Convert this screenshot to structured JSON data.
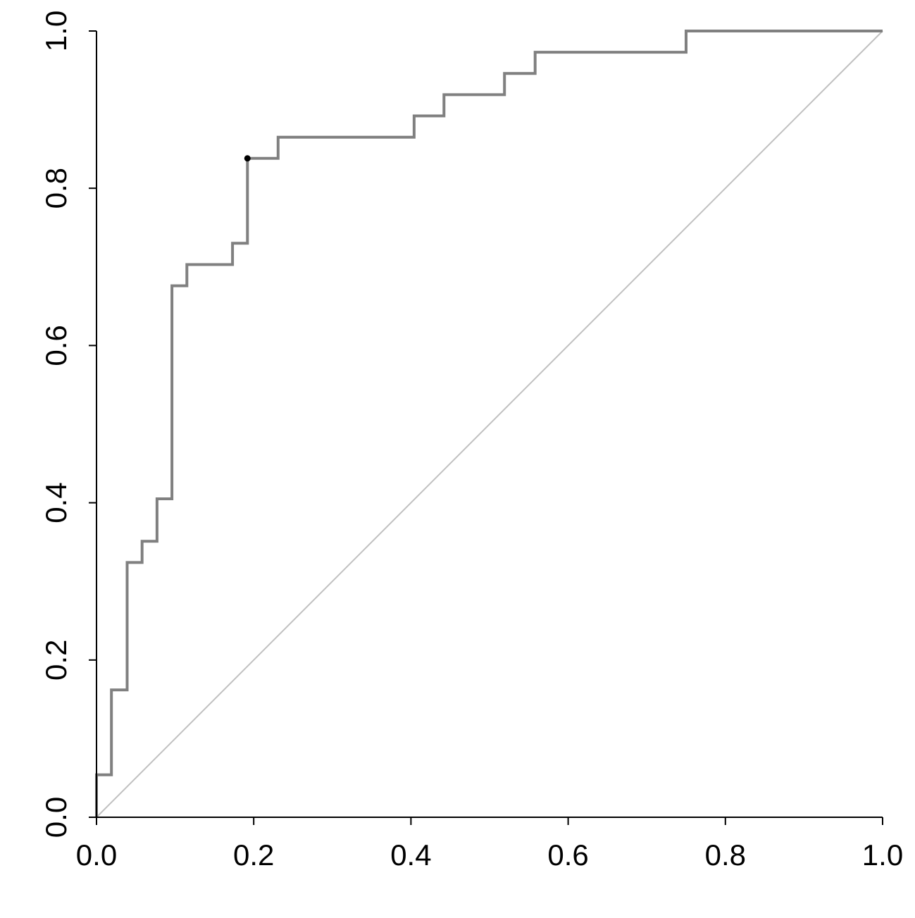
{
  "chart_data": {
    "type": "line",
    "title": "",
    "xlabel": "",
    "ylabel": "",
    "xlim": [
      0,
      1
    ],
    "ylim": [
      0,
      1
    ],
    "grid": false,
    "x_ticks": [
      "0.0",
      "0.2",
      "0.4",
      "0.6",
      "0.8",
      "1.0"
    ],
    "y_ticks": [
      "0.0",
      "0.2",
      "0.4",
      "0.6",
      "0.8",
      "1.0"
    ],
    "series": [
      {
        "style": "step",
        "color": "#808080",
        "points": [
          [
            0.0,
            0.0
          ],
          [
            0.0,
            0.054
          ],
          [
            0.019,
            0.054
          ],
          [
            0.019,
            0.162
          ],
          [
            0.039,
            0.162
          ],
          [
            0.039,
            0.324
          ],
          [
            0.058,
            0.324
          ],
          [
            0.058,
            0.351
          ],
          [
            0.077,
            0.351
          ],
          [
            0.077,
            0.405
          ],
          [
            0.096,
            0.405
          ],
          [
            0.096,
            0.676
          ],
          [
            0.115,
            0.676
          ],
          [
            0.115,
            0.703
          ],
          [
            0.173,
            0.703
          ],
          [
            0.173,
            0.73
          ],
          [
            0.192,
            0.73
          ],
          [
            0.192,
            0.838
          ],
          [
            0.231,
            0.838
          ],
          [
            0.231,
            0.865
          ],
          [
            0.404,
            0.865
          ],
          [
            0.404,
            0.892
          ],
          [
            0.442,
            0.892
          ],
          [
            0.442,
            0.919
          ],
          [
            0.519,
            0.919
          ],
          [
            0.519,
            0.946
          ],
          [
            0.558,
            0.946
          ],
          [
            0.558,
            0.973
          ],
          [
            0.75,
            0.973
          ],
          [
            0.75,
            1.0
          ],
          [
            1.0,
            1.0
          ]
        ]
      },
      {
        "style": "diagonal-reference",
        "color": "#c0c0c0",
        "points": [
          [
            0,
            0
          ],
          [
            1,
            1
          ]
        ]
      }
    ],
    "marker": {
      "x": 0.192,
      "y": 0.838,
      "color": "#000000"
    }
  }
}
